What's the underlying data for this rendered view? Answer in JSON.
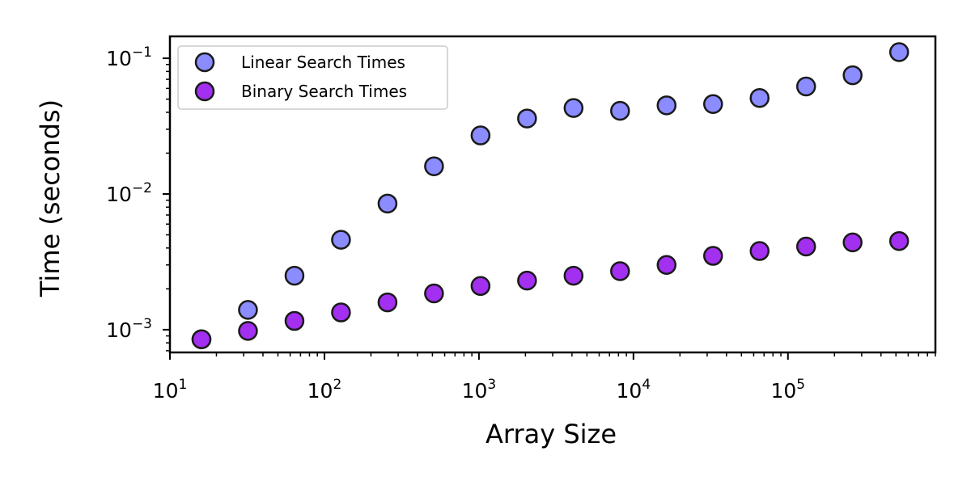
{
  "chart_data": {
    "type": "scatter",
    "xlabel": "Array Size",
    "ylabel": "Time (seconds)",
    "xscale": "log",
    "yscale": "log",
    "xlim": [
      10,
      900000
    ],
    "ylim": [
      0.00068,
      0.145
    ],
    "grid": false,
    "legend_position": "top-left",
    "x_ticks": [
      {
        "value": 10,
        "base": "10",
        "exp": "1"
      },
      {
        "value": 100,
        "base": "10",
        "exp": "2"
      },
      {
        "value": 1000,
        "base": "10",
        "exp": "3"
      },
      {
        "value": 10000,
        "base": "10",
        "exp": "4"
      },
      {
        "value": 100000,
        "base": "10",
        "exp": "5"
      }
    ],
    "y_ticks": [
      {
        "value": 0.001,
        "base": "10",
        "exp": "−3"
      },
      {
        "value": 0.01,
        "base": "10",
        "exp": "−2"
      },
      {
        "value": 0.1,
        "base": "10",
        "exp": "−1"
      }
    ],
    "x": [
      16,
      32,
      64,
      128,
      256,
      512,
      1024,
      2048,
      4096,
      8192,
      16384,
      32768,
      65536,
      131072,
      262144,
      524288
    ],
    "series": [
      {
        "name": "Linear Search Times",
        "color": "#8A8CFF",
        "values": [
          0.00085,
          0.0014,
          0.0025,
          0.0046,
          0.0085,
          0.016,
          0.027,
          0.036,
          0.043,
          0.041,
          0.045,
          0.046,
          0.051,
          0.062,
          0.075,
          0.111
        ]
      },
      {
        "name": "Binary Search Times",
        "color": "#A32FF0",
        "values": [
          0.00085,
          0.00098,
          0.00116,
          0.00134,
          0.00159,
          0.00185,
          0.0021,
          0.0023,
          0.0025,
          0.0027,
          0.003,
          0.0035,
          0.0038,
          0.0041,
          0.0044,
          0.0045
        ]
      }
    ]
  }
}
